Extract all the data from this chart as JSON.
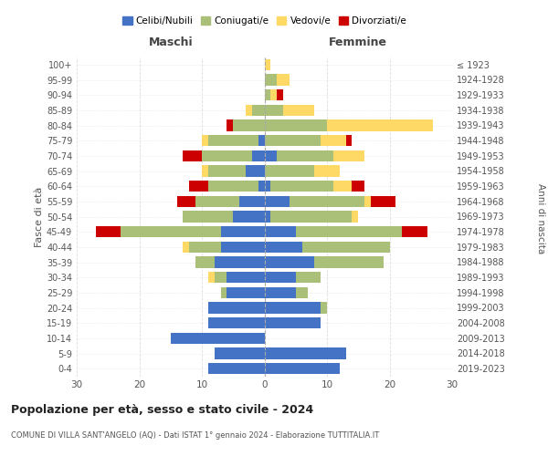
{
  "age_groups": [
    "0-4",
    "5-9",
    "10-14",
    "15-19",
    "20-24",
    "25-29",
    "30-34",
    "35-39",
    "40-44",
    "45-49",
    "50-54",
    "55-59",
    "60-64",
    "65-69",
    "70-74",
    "75-79",
    "80-84",
    "85-89",
    "90-94",
    "95-99",
    "100+"
  ],
  "birth_years": [
    "2019-2023",
    "2014-2018",
    "2009-2013",
    "2004-2008",
    "1999-2003",
    "1994-1998",
    "1989-1993",
    "1984-1988",
    "1979-1983",
    "1974-1978",
    "1969-1973",
    "1964-1968",
    "1959-1963",
    "1954-1958",
    "1949-1953",
    "1944-1948",
    "1939-1943",
    "1934-1938",
    "1929-1933",
    "1924-1928",
    "≤ 1923"
  ],
  "maschi": {
    "celibi": [
      9,
      8,
      15,
      9,
      9,
      6,
      6,
      8,
      7,
      7,
      5,
      4,
      1,
      3,
      2,
      1,
      0,
      0,
      0,
      0,
      0
    ],
    "coniugati": [
      0,
      0,
      0,
      0,
      0,
      1,
      2,
      3,
      5,
      16,
      8,
      7,
      8,
      6,
      8,
      8,
      5,
      2,
      0,
      0,
      0
    ],
    "vedovi": [
      0,
      0,
      0,
      0,
      0,
      0,
      1,
      0,
      1,
      0,
      0,
      0,
      0,
      1,
      0,
      1,
      0,
      1,
      0,
      0,
      0
    ],
    "divorziati": [
      0,
      0,
      0,
      0,
      0,
      0,
      0,
      0,
      0,
      4,
      0,
      3,
      3,
      0,
      3,
      0,
      1,
      0,
      0,
      0,
      0
    ]
  },
  "femmine": {
    "nubili": [
      12,
      13,
      0,
      9,
      9,
      5,
      5,
      8,
      6,
      5,
      1,
      4,
      1,
      0,
      2,
      0,
      0,
      0,
      0,
      0,
      0
    ],
    "coniugate": [
      0,
      0,
      0,
      0,
      1,
      2,
      4,
      11,
      14,
      17,
      13,
      12,
      10,
      8,
      9,
      9,
      10,
      3,
      1,
      2,
      0
    ],
    "vedove": [
      0,
      0,
      0,
      0,
      0,
      0,
      0,
      0,
      0,
      0,
      1,
      1,
      3,
      4,
      5,
      4,
      17,
      5,
      1,
      2,
      1
    ],
    "divorziate": [
      0,
      0,
      0,
      0,
      0,
      0,
      0,
      0,
      0,
      4,
      0,
      4,
      2,
      0,
      0,
      1,
      0,
      0,
      1,
      0,
      0
    ]
  },
  "colors": {
    "celibi": "#4472C4",
    "coniugati": "#AABF78",
    "vedovi": "#FFD966",
    "divorziati": "#CC0000"
  },
  "xlim": 30,
  "title": "Popolazione per età, sesso e stato civile - 2024",
  "subtitle": "COMUNE DI VILLA SANT'ANGELO (AQ) - Dati ISTAT 1° gennaio 2024 - Elaborazione TUTTITALIA.IT",
  "xlabel_left": "Maschi",
  "xlabel_right": "Femmine",
  "ylabel_left": "Fasce di età",
  "ylabel_right": "Anni di nascita",
  "legend_labels": [
    "Celibi/Nubili",
    "Coniugati/e",
    "Vedovi/e",
    "Divorziati/e"
  ],
  "bg_color": "#ffffff",
  "grid_color": "#cccccc"
}
